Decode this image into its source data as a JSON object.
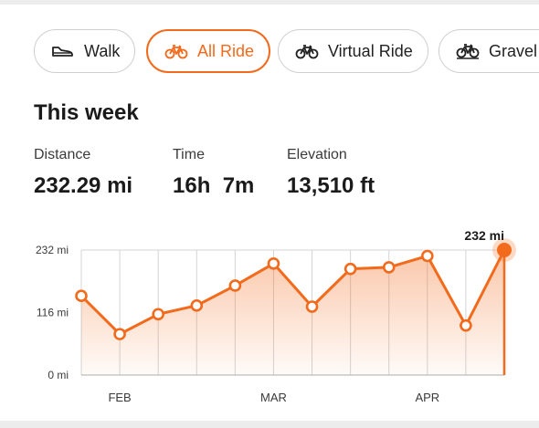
{
  "filters": [
    {
      "label": "Walk",
      "icon": "shoe-icon",
      "active": false
    },
    {
      "label": "All Ride",
      "icon": "bike-icon",
      "active": true
    },
    {
      "label": "Virtual Ride",
      "icon": "bike-icon",
      "active": false
    },
    {
      "label": "Gravel R",
      "icon": "gravel-bike-icon",
      "active": false
    }
  ],
  "summary": {
    "title": "This week",
    "stats": [
      {
        "label": "Distance",
        "value": "232.29 mi"
      },
      {
        "label": "Time",
        "value": "16h  7m"
      },
      {
        "label": "Elevation",
        "value": "13,510 ft"
      }
    ]
  },
  "colors": {
    "accent": "#f26a1b",
    "grid": "#d4d4d4",
    "text": "#1f1f1f"
  },
  "chart_data": {
    "type": "area",
    "ytick_labels": [
      "232 mi",
      "116 mi",
      "0 mi"
    ],
    "yticks": [
      232,
      116,
      0
    ],
    "ylim": [
      0,
      232
    ],
    "xtick_labels": [
      "FEB",
      "MAR",
      "APR"
    ],
    "xtick_index": [
      1,
      5,
      9
    ],
    "series": [
      {
        "values": [
          147,
          76,
          113,
          129,
          166,
          207,
          127,
          197,
          200,
          221,
          92,
          232
        ]
      }
    ],
    "highlight_label": "232 mi",
    "grid": true
  }
}
